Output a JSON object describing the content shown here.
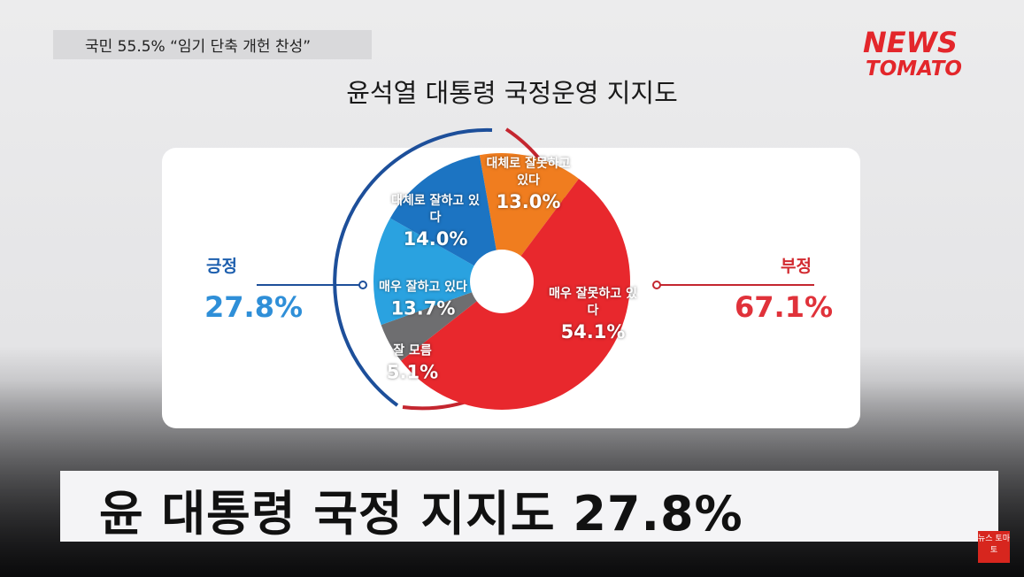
{
  "header": {
    "headline": "국민 55.5% “임기 단축 개헌 찬성”",
    "logo_top": "NEWS",
    "logo_bottom": "TOMATO"
  },
  "summary": {
    "positive": {
      "label": "긍정",
      "value": "27.8%"
    },
    "negative": {
      "label": "부정",
      "value": "67.1%"
    }
  },
  "caption": "윤 대통령 국정 지지도 27.8%",
  "corner_logo": "뉴스 토마토",
  "chart_data": {
    "type": "pie",
    "title": "윤석열 대통령 국정운영 지지도",
    "categories": [
      "대체로 잘못하고 있다",
      "매우 잘못하고 있다",
      "잘 모름",
      "매우 잘하고 있다",
      "대체로 잘하고 있다"
    ],
    "values": [
      13.0,
      54.1,
      5.1,
      13.7,
      14.0
    ],
    "value_labels": [
      "13.0%",
      "54.1%",
      "5.1%",
      "13.7%",
      "14.0%"
    ],
    "colors": [
      "#f07d1f",
      "#e8282d",
      "#6e6e70",
      "#2aa2e0",
      "#1c74c2"
    ]
  }
}
